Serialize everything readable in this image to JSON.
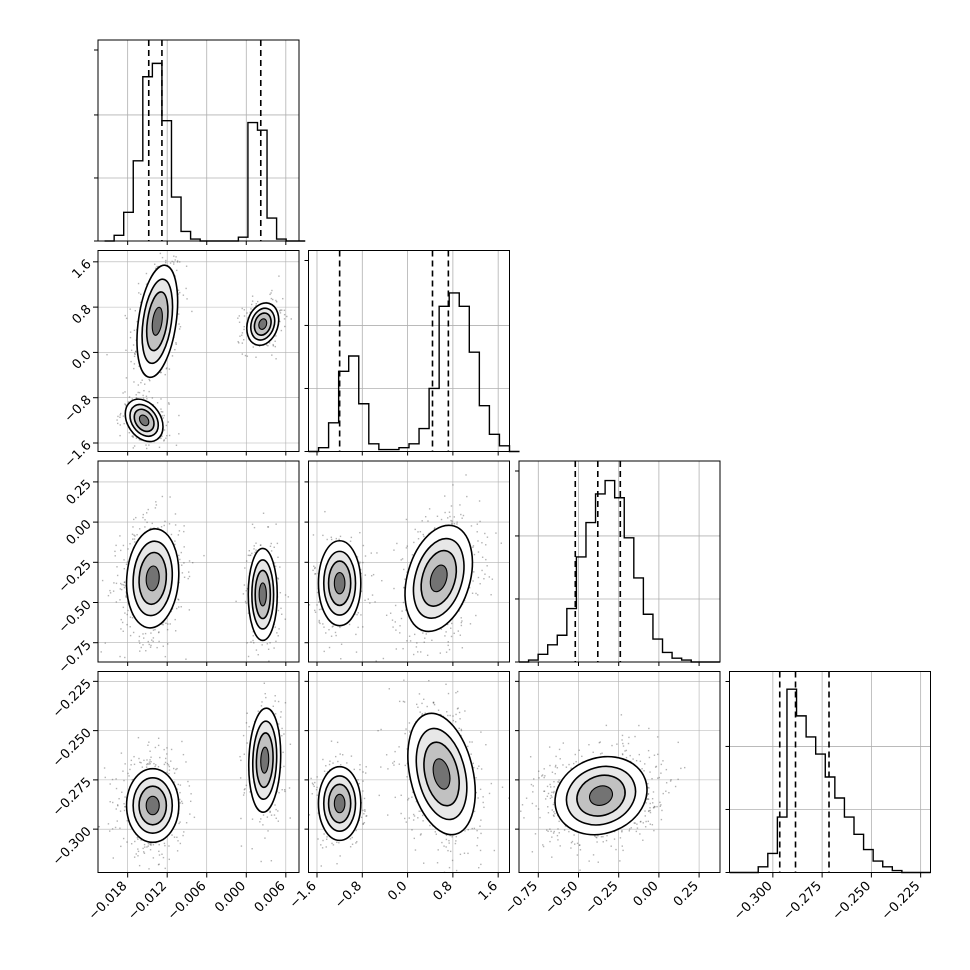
{
  "chart_data": {
    "type": "corner",
    "n_params": 4,
    "grid": true,
    "quantiles_shown": [
      0.16,
      0.5,
      0.84
    ],
    "ranges": [
      [
        -0.0225,
        0.008
      ],
      [
        -1.75,
        1.8
      ],
      [
        -0.87,
        0.38
      ],
      [
        -0.322,
        -0.22
      ]
    ],
    "ticks": [
      [
        -0.018,
        -0.012,
        -0.006,
        0.0,
        0.006
      ],
      [
        -1.6,
        -0.8,
        0.0,
        0.8,
        1.6
      ],
      [
        -0.75,
        -0.5,
        -0.25,
        0.0,
        0.25
      ],
      [
        -0.3,
        -0.275,
        -0.25,
        -0.225
      ]
    ],
    "tick_labels": [
      [
        "−0.018",
        "−0.012",
        "−0.006",
        "0.000",
        "0.006"
      ],
      [
        "−1.6",
        "−0.8",
        "0.0",
        "0.8",
        "1.6"
      ],
      [
        "−0.75",
        "−0.50",
        "−0.25",
        "0.00",
        "0.25"
      ],
      [
        "−0.300",
        "−0.275",
        "−0.250",
        "−0.225"
      ]
    ],
    "histograms": [
      {
        "param": 0,
        "bin_start": -0.0215,
        "bin_width": 0.00145,
        "counts": [
          0,
          0.03,
          0.15,
          0.42,
          0.86,
          0.93,
          0.63,
          0.23,
          0.05,
          0.01,
          0,
          0,
          0,
          0,
          0.02,
          0.62,
          0.58,
          0.12,
          0.01,
          0,
          0
        ],
        "quantiles": [
          -0.0148,
          -0.0128,
          0.0022
        ]
      },
      {
        "param": 1,
        "bin_start": -1.75,
        "bin_width": 0.1775,
        "counts": [
          0,
          0.02,
          0.15,
          0.42,
          0.5,
          0.25,
          0.04,
          0.01,
          0.01,
          0.02,
          0.04,
          0.12,
          0.33,
          0.76,
          0.83,
          0.76,
          0.52,
          0.24,
          0.09,
          0.03,
          0
        ],
        "quantiles": [
          -1.2,
          0.44,
          0.72
        ]
      },
      {
        "param": 2,
        "bin_start": -0.87,
        "bin_width": 0.0595,
        "counts": [
          0,
          0.01,
          0.04,
          0.09,
          0.14,
          0.28,
          0.55,
          0.73,
          0.88,
          0.95,
          0.86,
          0.65,
          0.44,
          0.25,
          0.12,
          0.05,
          0.02,
          0.01,
          0,
          0,
          0
        ],
        "quantiles": [
          -0.52,
          -0.38,
          -0.24
        ]
      },
      {
        "param": 3,
        "bin_start": -0.322,
        "bin_width": 0.00486,
        "counts": [
          0,
          0,
          0,
          0.03,
          0.1,
          0.29,
          0.96,
          0.82,
          0.71,
          0.62,
          0.5,
          0.39,
          0.29,
          0.2,
          0.12,
          0.06,
          0.03,
          0.01,
          0,
          0,
          0
        ],
        "quantiles": [
          -0.2965,
          -0.2885,
          -0.2715
        ]
      }
    ],
    "blobs_2d": [
      {
        "x_param": 0,
        "y_param": 1,
        "cx": -0.0135,
        "cy": 0.55,
        "sx": 0.0014,
        "sy": 0.45,
        "rho": 0.35,
        "weight": 0.45
      },
      {
        "x_param": 0,
        "y_param": 1,
        "cx": -0.0155,
        "cy": -1.2,
        "sx": 0.0013,
        "sy": 0.17,
        "rho": -0.3,
        "weight": 0.25
      },
      {
        "x_param": 0,
        "y_param": 1,
        "cx": 0.0025,
        "cy": 0.5,
        "sx": 0.0011,
        "sy": 0.17,
        "rho": 0.2,
        "weight": 0.3
      },
      {
        "x_param": 0,
        "y_param": 2,
        "cx": -0.0142,
        "cy": -0.35,
        "sx": 0.0018,
        "sy": 0.14,
        "rho": 0.1,
        "weight": 0.7
      },
      {
        "x_param": 0,
        "y_param": 2,
        "cx": 0.0025,
        "cy": -0.45,
        "sx": 0.001,
        "sy": 0.13,
        "rho": 0.0,
        "weight": 0.3
      },
      {
        "x_param": 1,
        "y_param": 2,
        "cx": -1.2,
        "cy": -0.38,
        "sx": 0.17,
        "sy": 0.12,
        "rho": 0.0,
        "weight": 0.3
      },
      {
        "x_param": 1,
        "y_param": 2,
        "cx": 0.55,
        "cy": -0.35,
        "sx": 0.27,
        "sy": 0.15,
        "rho": 0.3,
        "weight": 0.7
      },
      {
        "x_param": 2,
        "y_param": 3,
        "cx": -0.36,
        "cy": -0.283,
        "sx": 0.13,
        "sy": 0.009,
        "rho": 0.15,
        "weight": 1.0
      },
      {
        "x_param": 0,
        "y_param": 3,
        "cx": -0.0142,
        "cy": -0.288,
        "sx": 0.0018,
        "sy": 0.0085,
        "rho": 0.0,
        "weight": 0.7
      },
      {
        "x_param": 0,
        "y_param": 3,
        "cx": 0.0028,
        "cy": -0.265,
        "sx": 0.0011,
        "sy": 0.012,
        "rho": 0.1,
        "weight": 0.3
      },
      {
        "x_param": 1,
        "y_param": 3,
        "cx": -1.2,
        "cy": -0.287,
        "sx": 0.17,
        "sy": 0.0085,
        "rho": 0.0,
        "weight": 0.3
      },
      {
        "x_param": 1,
        "y_param": 3,
        "cx": 0.6,
        "cy": -0.272,
        "sx": 0.27,
        "sy": 0.014,
        "rho": -0.3,
        "weight": 0.7
      }
    ],
    "colors": {
      "line": "#000000",
      "grid": "#b0b0b0",
      "points": "#555555"
    }
  }
}
